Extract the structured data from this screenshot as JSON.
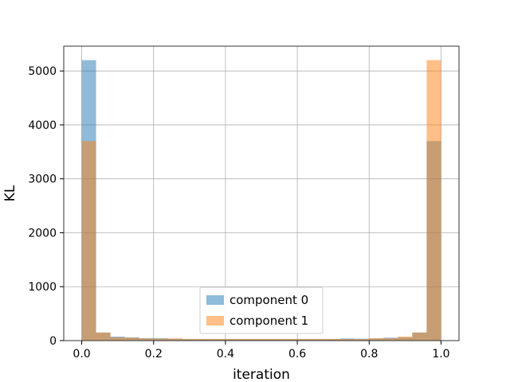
{
  "chart_data": {
    "type": "bar",
    "title": "",
    "xlabel": "iteration",
    "ylabel": "KL",
    "xlim": [
      -0.05,
      1.05
    ],
    "ylim": [
      0,
      5460
    ],
    "grid": true,
    "legend_position": "lower-center",
    "x_ticks": [
      {
        "value": 0.0,
        "label": "0.0"
      },
      {
        "value": 0.2,
        "label": "0.2"
      },
      {
        "value": 0.4,
        "label": "0.4"
      },
      {
        "value": 0.6,
        "label": "0.6"
      },
      {
        "value": 0.8,
        "label": "0.8"
      },
      {
        "value": 1.0,
        "label": "1.0"
      }
    ],
    "y_ticks": [
      {
        "value": 0,
        "label": "0"
      },
      {
        "value": 1000,
        "label": "1000"
      },
      {
        "value": 2000,
        "label": "2000"
      },
      {
        "value": 3000,
        "label": "3000"
      },
      {
        "value": 4000,
        "label": "4000"
      },
      {
        "value": 5000,
        "label": "5000"
      }
    ],
    "bin_edges": [
      0.0,
      0.04,
      0.08,
      0.12,
      0.16,
      0.2,
      0.24,
      0.28,
      0.32,
      0.36,
      0.4,
      0.44,
      0.48,
      0.52,
      0.56,
      0.6,
      0.64,
      0.68,
      0.72,
      0.76,
      0.8,
      0.84,
      0.88,
      0.92,
      0.96,
      1.0
    ],
    "series": [
      {
        "name": "component 0",
        "color": "#1f77b4",
        "alpha": 0.5,
        "values": [
          5200,
          150,
          75,
          60,
          45,
          45,
          35,
          30,
          30,
          30,
          30,
          30,
          30,
          30,
          30,
          30,
          30,
          30,
          40,
          35,
          40,
          55,
          60,
          150,
          3700
        ]
      },
      {
        "name": "component 1",
        "color": "#ff7f0e",
        "alpha": 0.5,
        "values": [
          3700,
          150,
          60,
          55,
          40,
          35,
          40,
          30,
          30,
          30,
          30,
          30,
          30,
          30,
          30,
          30,
          30,
          30,
          30,
          30,
          45,
          45,
          75,
          150,
          5200
        ]
      }
    ]
  }
}
